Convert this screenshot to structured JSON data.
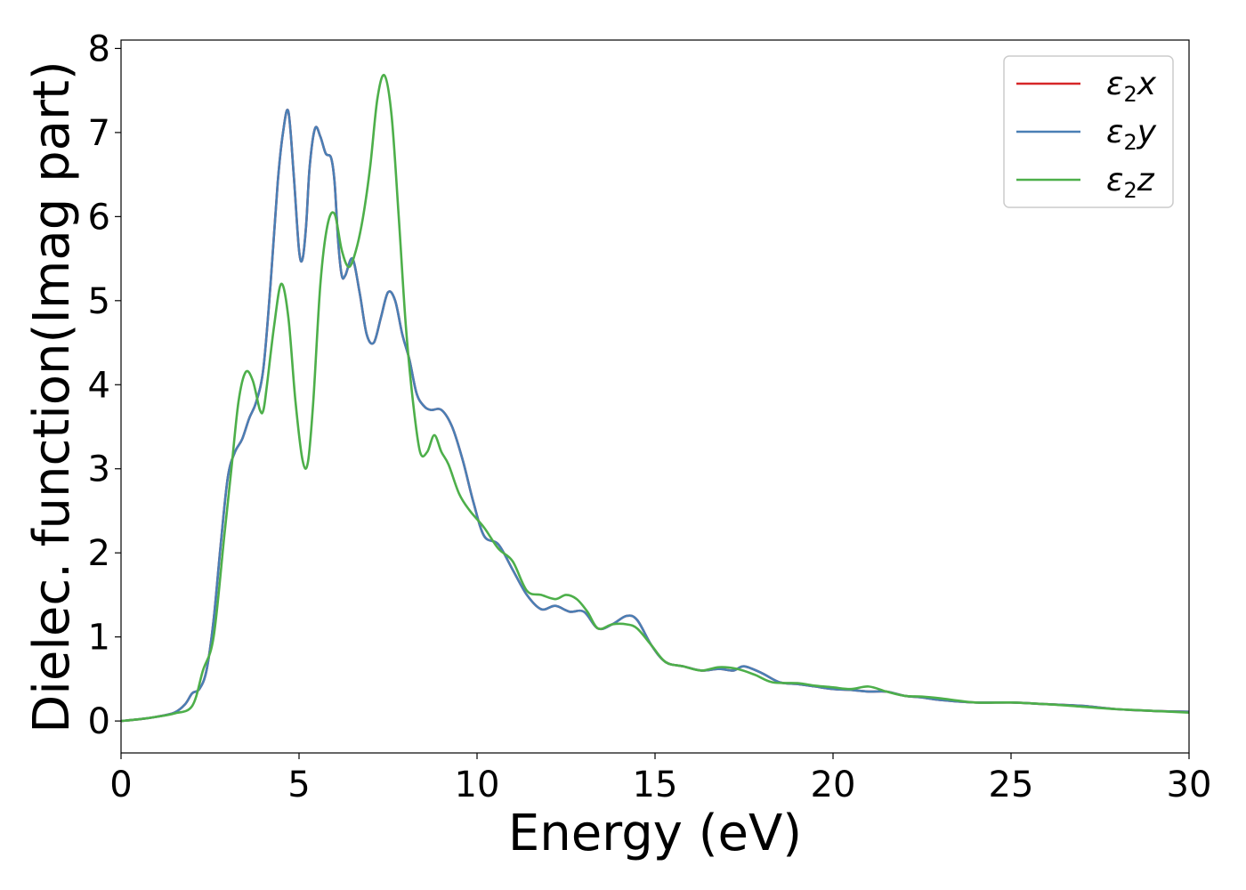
{
  "chart_data": {
    "type": "line",
    "xlabel": "Energy (eV)",
    "ylabel": "Dielec. function(Imag part)",
    "xlim": [
      0,
      30
    ],
    "ylim": [
      -0.38,
      8.1
    ],
    "xticks": [
      0,
      5,
      10,
      15,
      20,
      25,
      30
    ],
    "yticks": [
      0,
      1,
      2,
      3,
      4,
      5,
      6,
      7,
      8
    ],
    "grid": false,
    "legend_position": "top-right",
    "legend_labels": [
      {
        "base": "ε",
        "sub": "2",
        "var": "x"
      },
      {
        "base": "ε",
        "sub": "2",
        "var": "y"
      },
      {
        "base": "ε",
        "sub": "2",
        "var": "z"
      }
    ],
    "series": [
      {
        "color": "#d62728",
        "x": [
          0,
          0.5,
          1,
          1.5,
          1.8,
          2.0,
          2.2,
          2.4,
          2.6,
          2.8,
          3.0,
          3.2,
          3.4,
          3.6,
          3.8,
          4.0,
          4.2,
          4.4,
          4.55,
          4.7,
          4.85,
          5.0,
          5.1,
          5.2,
          5.3,
          5.45,
          5.6,
          5.75,
          5.9,
          6.0,
          6.1,
          6.2,
          6.3,
          6.5,
          6.7,
          6.9,
          7.1,
          7.3,
          7.5,
          7.7,
          7.9,
          8.1,
          8.3,
          8.5,
          8.7,
          9.0,
          9.3,
          9.6,
          9.9,
          10.2,
          10.6,
          11.0,
          11.4,
          11.8,
          12.2,
          12.6,
          13.0,
          13.4,
          13.8,
          14.2,
          14.5,
          14.9,
          15.3,
          15.8,
          16.3,
          16.8,
          17.2,
          17.5,
          18.0,
          18.5,
          19.0,
          19.5,
          20.0,
          20.5,
          21.0,
          21.5,
          22.0,
          22.5,
          23.0,
          24.0,
          25.0,
          26.0,
          27.0,
          28.0,
          29.0,
          30.0
        ],
        "values": [
          0,
          0.02,
          0.05,
          0.1,
          0.2,
          0.33,
          0.38,
          0.6,
          1.2,
          2.1,
          2.9,
          3.2,
          3.35,
          3.6,
          3.8,
          4.2,
          5.2,
          6.4,
          7.0,
          7.25,
          6.5,
          5.6,
          5.5,
          5.9,
          6.6,
          7.05,
          6.95,
          6.75,
          6.7,
          6.4,
          5.7,
          5.3,
          5.3,
          5.5,
          5.1,
          4.6,
          4.5,
          4.8,
          5.1,
          5.0,
          4.6,
          4.3,
          3.9,
          3.75,
          3.7,
          3.7,
          3.5,
          3.1,
          2.6,
          2.2,
          2.1,
          1.8,
          1.5,
          1.33,
          1.37,
          1.3,
          1.3,
          1.1,
          1.15,
          1.25,
          1.2,
          0.9,
          0.7,
          0.65,
          0.6,
          0.62,
          0.6,
          0.65,
          0.57,
          0.46,
          0.44,
          0.41,
          0.38,
          0.37,
          0.35,
          0.35,
          0.3,
          0.28,
          0.25,
          0.22,
          0.22,
          0.2,
          0.18,
          0.14,
          0.12,
          0.11
        ]
      },
      {
        "color": "#4a7fb5",
        "x": [
          0,
          0.5,
          1,
          1.5,
          1.8,
          2.0,
          2.2,
          2.4,
          2.6,
          2.8,
          3.0,
          3.2,
          3.4,
          3.6,
          3.8,
          4.0,
          4.2,
          4.4,
          4.55,
          4.7,
          4.85,
          5.0,
          5.1,
          5.2,
          5.3,
          5.45,
          5.6,
          5.75,
          5.9,
          6.0,
          6.1,
          6.2,
          6.3,
          6.5,
          6.7,
          6.9,
          7.1,
          7.3,
          7.5,
          7.7,
          7.9,
          8.1,
          8.3,
          8.5,
          8.7,
          9.0,
          9.3,
          9.6,
          9.9,
          10.2,
          10.6,
          11.0,
          11.4,
          11.8,
          12.2,
          12.6,
          13.0,
          13.4,
          13.8,
          14.2,
          14.5,
          14.9,
          15.3,
          15.8,
          16.3,
          16.8,
          17.2,
          17.5,
          18.0,
          18.5,
          19.0,
          19.5,
          20.0,
          20.5,
          21.0,
          21.5,
          22.0,
          22.5,
          23.0,
          24.0,
          25.0,
          26.0,
          27.0,
          28.0,
          29.0,
          30.0
        ],
        "values": [
          0,
          0.02,
          0.05,
          0.1,
          0.2,
          0.33,
          0.38,
          0.6,
          1.2,
          2.1,
          2.9,
          3.2,
          3.35,
          3.6,
          3.8,
          4.2,
          5.2,
          6.4,
          7.0,
          7.25,
          6.5,
          5.6,
          5.5,
          5.9,
          6.6,
          7.05,
          6.95,
          6.75,
          6.7,
          6.4,
          5.7,
          5.3,
          5.3,
          5.5,
          5.1,
          4.6,
          4.5,
          4.8,
          5.1,
          5.0,
          4.6,
          4.3,
          3.9,
          3.75,
          3.7,
          3.7,
          3.5,
          3.1,
          2.6,
          2.2,
          2.1,
          1.8,
          1.5,
          1.33,
          1.37,
          1.3,
          1.3,
          1.1,
          1.15,
          1.25,
          1.2,
          0.9,
          0.7,
          0.65,
          0.6,
          0.62,
          0.6,
          0.65,
          0.57,
          0.46,
          0.44,
          0.41,
          0.38,
          0.37,
          0.35,
          0.35,
          0.3,
          0.28,
          0.25,
          0.22,
          0.22,
          0.2,
          0.18,
          0.14,
          0.12,
          0.11
        ]
      },
      {
        "color": "#4daf4a",
        "x": [
          0,
          0.5,
          1,
          1.5,
          2.0,
          2.3,
          2.6,
          2.9,
          3.1,
          3.3,
          3.5,
          3.7,
          3.9,
          4.0,
          4.1,
          4.3,
          4.5,
          4.7,
          4.9,
          5.1,
          5.25,
          5.4,
          5.6,
          5.8,
          6.0,
          6.2,
          6.4,
          6.6,
          6.8,
          7.0,
          7.2,
          7.4,
          7.6,
          7.8,
          8.0,
          8.2,
          8.4,
          8.6,
          8.8,
          9.0,
          9.2,
          9.5,
          9.8,
          10.2,
          10.6,
          11.0,
          11.4,
          11.8,
          12.2,
          12.5,
          12.8,
          13.1,
          13.4,
          13.8,
          14.2,
          14.5,
          14.9,
          15.3,
          15.8,
          16.3,
          16.8,
          17.3,
          17.8,
          18.3,
          19.0,
          19.5,
          20.0,
          20.5,
          21.0,
          21.5,
          22.0,
          22.5,
          23.0,
          24.0,
          25.0,
          26.0,
          27.0,
          28.0,
          29.0,
          30.0
        ],
        "values": [
          0,
          0.02,
          0.05,
          0.09,
          0.18,
          0.6,
          1.0,
          2.2,
          3.0,
          3.8,
          4.15,
          4.05,
          3.7,
          3.7,
          4.0,
          4.7,
          5.2,
          4.8,
          3.8,
          3.1,
          3.08,
          3.8,
          5.2,
          5.9,
          6.03,
          5.6,
          5.4,
          5.6,
          6.0,
          6.6,
          7.4,
          7.68,
          7.2,
          6.0,
          4.7,
          3.8,
          3.2,
          3.2,
          3.4,
          3.2,
          3.05,
          2.7,
          2.5,
          2.3,
          2.05,
          1.9,
          1.55,
          1.5,
          1.45,
          1.5,
          1.45,
          1.3,
          1.1,
          1.15,
          1.15,
          1.1,
          0.9,
          0.7,
          0.65,
          0.6,
          0.64,
          0.62,
          0.55,
          0.46,
          0.45,
          0.42,
          0.4,
          0.38,
          0.41,
          0.35,
          0.3,
          0.29,
          0.27,
          0.22,
          0.22,
          0.2,
          0.17,
          0.14,
          0.12,
          0.1
        ]
      }
    ]
  }
}
